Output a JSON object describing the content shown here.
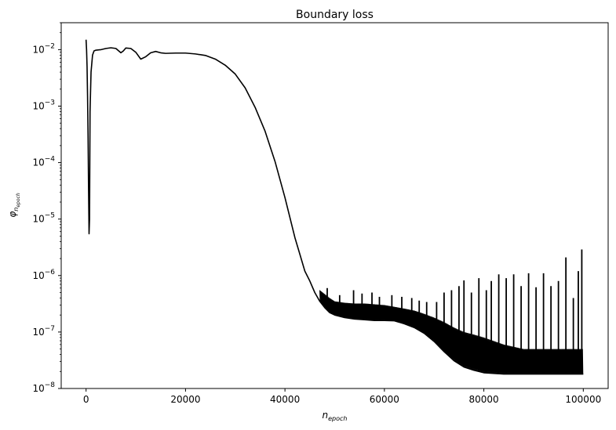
{
  "chart_data": {
    "type": "line",
    "title": "Boundary loss",
    "xlabel": {
      "base": "n",
      "sub": "epoch"
    },
    "ylabel": {
      "base": "φ",
      "sub_base": "n",
      "sub_sub": "epoch"
    },
    "xlim": [
      -5000,
      105000
    ],
    "ylim": [
      1e-08,
      0.03
    ],
    "yscale": "log",
    "grid": false,
    "xticks": [
      {
        "value": 0,
        "label": "0"
      },
      {
        "value": 20000,
        "label": "20000"
      },
      {
        "value": 40000,
        "label": "40000"
      },
      {
        "value": 60000,
        "label": "60000"
      },
      {
        "value": 80000,
        "label": "80000"
      },
      {
        "value": 100000,
        "label": "100000"
      }
    ],
    "yticks": [
      {
        "value": 1e-08,
        "base": "10",
        "exp": "−8"
      },
      {
        "value": 1e-07,
        "base": "10",
        "exp": "−7"
      },
      {
        "value": 1e-06,
        "base": "10",
        "exp": "−6"
      },
      {
        "value": 1e-05,
        "base": "10",
        "exp": "−5"
      },
      {
        "value": 0.0001,
        "base": "10",
        "exp": "−4"
      },
      {
        "value": 0.001,
        "base": "10",
        "exp": "−3"
      },
      {
        "value": 0.01,
        "base": "10",
        "exp": "−2"
      }
    ],
    "series": [
      {
        "color": "#000000",
        "main": {
          "x": [
            0,
            100,
            200,
            300,
            400,
            500,
            600,
            700,
            800,
            1000,
            1300,
            1600,
            2000,
            3000,
            4000,
            5000,
            6000,
            7000,
            7500,
            8000,
            9000,
            10000,
            11000,
            12000,
            13000,
            14000,
            15000,
            16000,
            18000,
            20000,
            22000,
            24000,
            26000,
            28000,
            30000,
            32000,
            34000,
            36000,
            38000,
            40000,
            42000,
            44000,
            45000,
            46000,
            47000,
            48000,
            49000,
            50000,
            52000,
            54000,
            56000,
            58000,
            60000,
            62000,
            64000,
            66000,
            68000,
            70000,
            72000,
            74000,
            76000,
            78000,
            80000,
            84000,
            88000,
            92000,
            96000,
            100000
          ],
          "y": [
            0.015,
            0.01,
            0.005,
            0.0015,
            0.0003,
            3.5e-05,
            5.5e-06,
            1e-05,
            0.0008,
            0.004,
            0.008,
            0.0095,
            0.0098,
            0.01,
            0.0105,
            0.0108,
            0.0105,
            0.0088,
            0.0095,
            0.0107,
            0.0105,
            0.009,
            0.0068,
            0.0075,
            0.0088,
            0.0093,
            0.0088,
            0.0086,
            0.0087,
            0.0087,
            0.0084,
            0.0079,
            0.0068,
            0.0053,
            0.0037,
            0.0021,
            0.00095,
            0.00036,
            0.000105,
            2.4e-05,
            4.7e-06,
            1.2e-06,
            8e-07,
            5e-07,
            3.5e-07,
            2.7e-07,
            2.2e-07,
            2e-07,
            1.8e-07,
            1.7e-07,
            1.65e-07,
            1.6e-07,
            1.6e-07,
            1.58e-07,
            1.4e-07,
            1.2e-07,
            9.5e-08,
            6.8e-08,
            4.5e-08,
            3.1e-08,
            2.4e-08,
            2.1e-08,
            1.9e-08,
            1.8e-08,
            1.8e-08,
            1.8e-08,
            1.8e-08,
            1.8e-08
          ]
        },
        "oscillation_band": {
          "x": [
            47000,
            49000,
            50000,
            52000,
            54000,
            56000,
            58000,
            60000,
            62000,
            64000,
            66000,
            68000,
            70000,
            72000,
            74000,
            76000,
            78000,
            80000,
            84000,
            88000,
            92000,
            96000,
            100000
          ],
          "upper": [
            5.5e-07,
            4e-07,
            3.5e-07,
            3.3e-07,
            3.2e-07,
            3.2e-07,
            3.1e-07,
            3e-07,
            2.8e-07,
            2.6e-07,
            2.4e-07,
            2.1e-07,
            1.8e-07,
            1.5e-07,
            1.2e-07,
            1e-07,
            9e-08,
            8e-08,
            6e-08,
            5e-08,
            5e-08,
            5e-08,
            5e-08
          ]
        },
        "spikes": [
          {
            "x": 48500,
            "y": 6e-07
          },
          {
            "x": 51000,
            "y": 4.5e-07
          },
          {
            "x": 53800,
            "y": 5.5e-07
          },
          {
            "x": 55500,
            "y": 4.8e-07
          },
          {
            "x": 57500,
            "y": 5e-07
          },
          {
            "x": 59000,
            "y": 4.2e-07
          },
          {
            "x": 61500,
            "y": 4.5e-07
          },
          {
            "x": 63500,
            "y": 4.2e-07
          },
          {
            "x": 65500,
            "y": 4e-07
          },
          {
            "x": 67000,
            "y": 3.6e-07
          },
          {
            "x": 68500,
            "y": 3.4e-07
          },
          {
            "x": 70500,
            "y": 3.4e-07
          },
          {
            "x": 72000,
            "y": 5e-07
          },
          {
            "x": 73500,
            "y": 5.5e-07
          },
          {
            "x": 75000,
            "y": 6.5e-07
          },
          {
            "x": 76000,
            "y": 8.2e-07
          },
          {
            "x": 77500,
            "y": 5e-07
          },
          {
            "x": 79000,
            "y": 9e-07
          },
          {
            "x": 80500,
            "y": 5.5e-07
          },
          {
            "x": 81500,
            "y": 8e-07
          },
          {
            "x": 83000,
            "y": 1.05e-06
          },
          {
            "x": 84500,
            "y": 9e-07
          },
          {
            "x": 86000,
            "y": 1.05e-06
          },
          {
            "x": 87500,
            "y": 6.5e-07
          },
          {
            "x": 89000,
            "y": 1.1e-06
          },
          {
            "x": 90500,
            "y": 6.2e-07
          },
          {
            "x": 92000,
            "y": 1.1e-06
          },
          {
            "x": 93500,
            "y": 6.5e-07
          },
          {
            "x": 95000,
            "y": 8e-07
          },
          {
            "x": 96500,
            "y": 2.1e-06
          },
          {
            "x": 98000,
            "y": 4e-07
          },
          {
            "x": 99000,
            "y": 1.2e-06
          },
          {
            "x": 99700,
            "y": 2.9e-06
          }
        ]
      }
    ]
  }
}
